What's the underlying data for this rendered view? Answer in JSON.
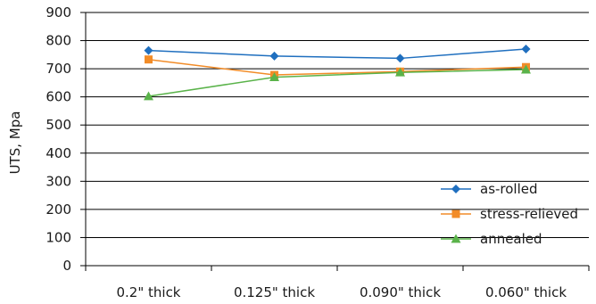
{
  "chart_data": {
    "type": "line",
    "title": "",
    "xlabel": "",
    "ylabel": "UTS, Mpa",
    "ylim": [
      0,
      900
    ],
    "y_ticks": [
      0,
      100,
      200,
      300,
      400,
      500,
      600,
      700,
      800,
      900
    ],
    "categories": [
      "0.2\" thick",
      "0.125\" thick",
      "0.090\" thick",
      "0.060\" thick"
    ],
    "grid": true,
    "legend_position": "bottom-right",
    "series": [
      {
        "name": "as-rolled",
        "color": "#1f6fbf",
        "marker": "diamond",
        "values": [
          765,
          745,
          737,
          770
        ]
      },
      {
        "name": "stress-relieved",
        "color": "#f28c28",
        "marker": "square",
        "values": [
          733,
          678,
          690,
          706
        ]
      },
      {
        "name": "annealed",
        "color": "#5ab34a",
        "marker": "triangle",
        "values": [
          602,
          670,
          687,
          697
        ]
      }
    ]
  }
}
